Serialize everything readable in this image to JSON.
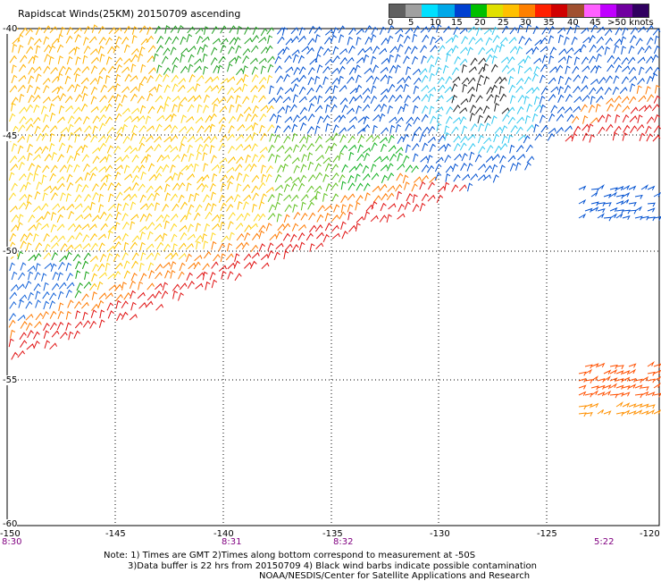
{
  "title": "Rapidscat Winds(25KM) 20150709 ascending",
  "color_scale": {
    "labels": [
      "0",
      "5",
      "10",
      "15",
      "20",
      "25",
      "30",
      "35",
      "40",
      "45",
      ">50 knots"
    ],
    "colors": [
      "#606060",
      "#a0a0a0",
      "#00e0ff",
      "#00a8e8",
      "#0040d0",
      "#00c000",
      "#e0e000",
      "#ffc000",
      "#ff8000",
      "#ff2000",
      "#d00000",
      "#a05030",
      "#ff60ff",
      "#c000ff",
      "#7000a0",
      "#300060"
    ]
  },
  "map": {
    "lat_labels": [
      "-40",
      "-45",
      "-50",
      "-55",
      "-60"
    ],
    "lon_labels": [
      "-150",
      "-145",
      "-140",
      "-135",
      "-130",
      "-125",
      "-120"
    ],
    "time_labels": [
      "8:30",
      "8:31",
      "8:32",
      "5:22"
    ]
  },
  "notes": {
    "line1": "Note: 1) Times are GMT 2)Times along bottom correspond to measurement at -50S",
    "line2": "3)Data buffer is 22 hrs from 20150709 4) Black wind barbs indicate possible contamination",
    "line3": "NOAA/NESDIS/Center for Satellite Applications and Research"
  }
}
